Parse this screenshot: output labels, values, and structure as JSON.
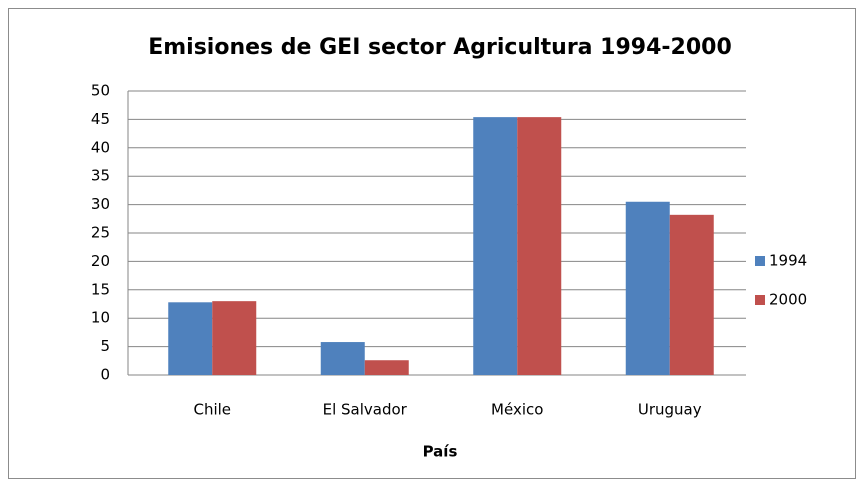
{
  "chart_data": {
    "type": "bar",
    "title": "Emisiones de GEI sector Agricultura 1994-2000",
    "x_label": "País",
    "categories": [
      "Chile",
      "El Salvador",
      "México",
      "Uruguay"
    ],
    "series": [
      {
        "name": "1994",
        "color": "#4f81bd",
        "values": [
          12.8,
          5.8,
          45.4,
          30.5
        ]
      },
      {
        "name": "2000",
        "color": "#c0504d",
        "values": [
          13.0,
          2.6,
          45.4,
          28.2
        ]
      }
    ],
    "ylim": [
      0,
      50
    ],
    "yticks": [
      0,
      5,
      10,
      15,
      20,
      25,
      30,
      35,
      40,
      45,
      50
    ],
    "grid": true,
    "legend": "right"
  }
}
